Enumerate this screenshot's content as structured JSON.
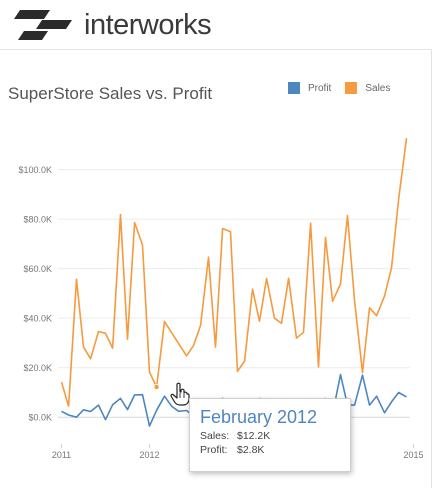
{
  "header": {
    "brand": "interworks"
  },
  "legend": [
    {
      "label": "Profit",
      "color": "#4e86c0"
    },
    {
      "label": "Sales",
      "color": "#f59a3e"
    }
  ],
  "tooltip": {
    "title": "February 2012",
    "rows": [
      {
        "label": "Sales:",
        "value": "$12.2K"
      },
      {
        "label": "Profit:",
        "value": "$2.8K"
      }
    ]
  },
  "chart_data": {
    "type": "line",
    "title": "SuperStore Sales vs. Profit",
    "xlabel": "",
    "ylabel": "",
    "ylim": [
      -10,
      120
    ],
    "yticks": [
      0,
      20,
      40,
      60,
      80,
      100
    ],
    "ytick_labels": [
      "$0.0K",
      "$20.0K",
      "$40.0K",
      "$60.0K",
      "$80.0K",
      "$100.0K"
    ],
    "xticks": [
      2011,
      2012,
      2013,
      2014,
      2015
    ],
    "xtick_labels": [
      "2011",
      "2012",
      "2013",
      "2014",
      "2015"
    ],
    "xlim": [
      2010.96,
      2014.96
    ],
    "grid": "horizontal",
    "legend": "top-right",
    "series": [
      {
        "name": "Sales",
        "color": "#f59a3e",
        "x": [
          2011.0,
          2011.08,
          2011.17,
          2011.25,
          2011.33,
          2011.42,
          2011.5,
          2011.58,
          2011.67,
          2011.75,
          2011.83,
          2011.92,
          2012.0,
          2012.08,
          2012.17,
          2012.25,
          2012.33,
          2012.42,
          2012.5,
          2012.58,
          2012.67,
          2012.75,
          2012.83,
          2012.92,
          2013.0,
          2013.08,
          2013.17,
          2013.25,
          2013.33,
          2013.42,
          2013.5,
          2013.58,
          2013.67,
          2013.75,
          2013.83,
          2013.92,
          2014.0,
          2014.08,
          2014.17,
          2014.25,
          2014.33,
          2014.42,
          2014.5,
          2014.58,
          2014.67,
          2014.75,
          2014.83,
          2014.92
        ],
        "y": [
          14.2,
          4.5,
          55.7,
          28.3,
          23.6,
          34.6,
          33.9,
          27.9,
          81.8,
          31.5,
          78.6,
          69.5,
          18.2,
          12.2,
          38.7,
          34.2,
          29.8,
          24.8,
          28.9,
          37.1,
          64.6,
          28.3,
          76.2,
          74.9,
          18.5,
          22.7,
          51.7,
          38.8,
          56.0,
          40.0,
          37.9,
          56.1,
          31.9,
          34.3,
          78.3,
          20.3,
          72.6,
          46.8,
          53.8,
          81.4,
          46.9,
          18.0,
          44.2,
          41.0,
          48.9,
          60.3,
          87.9,
          112.7
        ]
      },
      {
        "name": "Profit",
        "color": "#4e86c0",
        "x": [
          2011.0,
          2011.08,
          2011.17,
          2011.25,
          2011.33,
          2011.42,
          2011.5,
          2011.58,
          2011.67,
          2011.75,
          2011.83,
          2011.92,
          2012.0,
          2012.08,
          2012.17,
          2012.25,
          2012.33,
          2012.42,
          2012.5,
          2012.58,
          2012.67,
          2012.75,
          2012.83,
          2012.92,
          2013.0,
          2013.08,
          2013.17,
          2013.25,
          2013.33,
          2013.42,
          2013.5,
          2013.58,
          2013.67,
          2013.75,
          2013.83,
          2013.92,
          2014.0,
          2014.08,
          2014.17,
          2014.25,
          2014.33,
          2014.42,
          2014.5,
          2014.58,
          2014.67,
          2014.75,
          2014.83,
          2014.92
        ],
        "y": [
          2.4,
          0.9,
          0.0,
          3.0,
          2.3,
          4.9,
          -1.0,
          5.0,
          7.6,
          3.1,
          9.0,
          9.1,
          -3.6,
          2.8,
          8.5,
          4.5,
          2.4,
          2.7,
          0.5,
          3.5,
          5.8,
          -1.0,
          7.7,
          2.6,
          1.0,
          2.3,
          2.5,
          7.6,
          6.6,
          3.7,
          2.8,
          5.9,
          1.5,
          6.2,
          4.1,
          5.0,
          7.6,
          1.3,
          17.2,
          4.9,
          4.9,
          17.0,
          4.9,
          8.5,
          1.8,
          6.2,
          10.0,
          8.2
        ]
      }
    ],
    "highlight": {
      "series": "Sales",
      "x": 2012.08,
      "y": 12.2
    }
  }
}
